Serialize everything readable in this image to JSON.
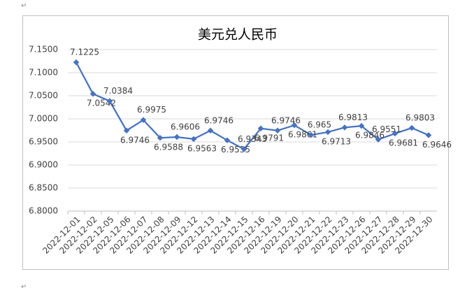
{
  "paragraph_mark": "↵",
  "chart_data": {
    "type": "line",
    "title": "美元兑人民币",
    "categories": [
      "2022-12-01",
      "2022-12-02",
      "2022-12-05",
      "2022-12-06",
      "2022-12-07",
      "2022-12-08",
      "2022-12-09",
      "2022-12-12",
      "2022-12-13",
      "2022-12-14",
      "2022-12-15",
      "2022-12-16",
      "2022-12-19",
      "2022-12-20",
      "2022-12-21",
      "2022-12-22",
      "2022-12-23",
      "2022-12-26",
      "2022-12-27",
      "2022-12-28",
      "2022-12-29",
      "2022-12-30"
    ],
    "values": [
      7.1225,
      7.0542,
      7.0384,
      6.9746,
      6.9975,
      6.9588,
      6.9606,
      6.9563,
      6.9746,
      6.9535,
      6.9343,
      6.9791,
      6.9746,
      6.9861,
      6.965,
      6.9713,
      6.9813,
      6.9846,
      6.9551,
      6.9681,
      6.9803,
      6.9646
    ],
    "color": "#4472c4",
    "ylim": [
      6.8,
      7.15
    ],
    "yticks": [
      {
        "value": 6.8,
        "label": "6.8000"
      },
      {
        "value": 6.85,
        "label": "6.8500"
      },
      {
        "value": 6.9,
        "label": "6.9000"
      },
      {
        "value": 6.95,
        "label": "6.9500"
      },
      {
        "value": 7.0,
        "label": "7.0000"
      },
      {
        "value": 7.05,
        "label": "7.0500"
      },
      {
        "value": 7.1,
        "label": "7.1000"
      },
      {
        "value": 7.15,
        "label": "7.1500"
      }
    ],
    "grid": true
  }
}
